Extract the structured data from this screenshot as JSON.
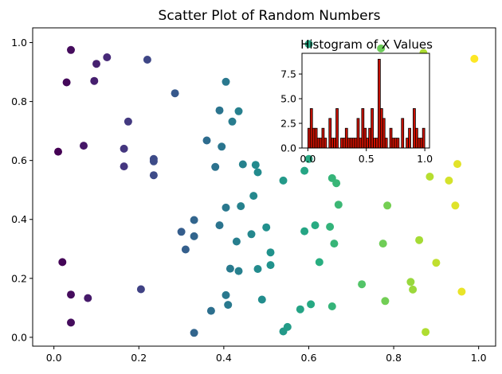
{
  "chart_data": [
    {
      "type": "scatter",
      "title": "Scatter Plot of Random Numbers",
      "xlabel": "",
      "ylabel": "",
      "xlim": [
        -0.05,
        1.04
      ],
      "ylim": [
        -0.03,
        1.05
      ],
      "xticks": [
        0.0,
        0.2,
        0.4,
        0.6,
        0.8,
        1.0
      ],
      "xtick_labels": [
        "0.0",
        "0.2",
        "0.4",
        "0.6",
        "0.8",
        "1.0"
      ],
      "yticks": [
        0.0,
        0.2,
        0.4,
        0.6,
        0.8,
        1.0
      ],
      "ytick_labels": [
        "0.0",
        "0.2",
        "0.4",
        "0.6",
        "0.8",
        "1.0"
      ],
      "colormap": "viridis",
      "color_by": "x",
      "grid": false,
      "points": [
        {
          "x": 0.01,
          "y": 0.63
        },
        {
          "x": 0.02,
          "y": 0.255
        },
        {
          "x": 0.03,
          "y": 0.865
        },
        {
          "x": 0.04,
          "y": 0.975
        },
        {
          "x": 0.04,
          "y": 0.145
        },
        {
          "x": 0.04,
          "y": 0.05
        },
        {
          "x": 0.07,
          "y": 0.65
        },
        {
          "x": 0.08,
          "y": 0.133
        },
        {
          "x": 0.095,
          "y": 0.87
        },
        {
          "x": 0.1,
          "y": 0.928
        },
        {
          "x": 0.125,
          "y": 0.95
        },
        {
          "x": 0.165,
          "y": 0.64
        },
        {
          "x": 0.165,
          "y": 0.58
        },
        {
          "x": 0.175,
          "y": 0.732
        },
        {
          "x": 0.205,
          "y": 0.163
        },
        {
          "x": 0.22,
          "y": 0.942
        },
        {
          "x": 0.235,
          "y": 0.605
        },
        {
          "x": 0.235,
          "y": 0.597
        },
        {
          "x": 0.235,
          "y": 0.55
        },
        {
          "x": 0.285,
          "y": 0.828
        },
        {
          "x": 0.3,
          "y": 0.358
        },
        {
          "x": 0.31,
          "y": 0.298
        },
        {
          "x": 0.33,
          "y": 0.398
        },
        {
          "x": 0.33,
          "y": 0.343
        },
        {
          "x": 0.33,
          "y": 0.015
        },
        {
          "x": 0.36,
          "y": 0.668
        },
        {
          "x": 0.37,
          "y": 0.09
        },
        {
          "x": 0.38,
          "y": 0.578
        },
        {
          "x": 0.39,
          "y": 0.77
        },
        {
          "x": 0.39,
          "y": 0.38
        },
        {
          "x": 0.395,
          "y": 0.647
        },
        {
          "x": 0.405,
          "y": 0.867
        },
        {
          "x": 0.405,
          "y": 0.44
        },
        {
          "x": 0.405,
          "y": 0.143
        },
        {
          "x": 0.41,
          "y": 0.11
        },
        {
          "x": 0.415,
          "y": 0.233
        },
        {
          "x": 0.42,
          "y": 0.732
        },
        {
          "x": 0.43,
          "y": 0.325
        },
        {
          "x": 0.435,
          "y": 0.767
        },
        {
          "x": 0.435,
          "y": 0.225
        },
        {
          "x": 0.44,
          "y": 0.445
        },
        {
          "x": 0.445,
          "y": 0.587
        },
        {
          "x": 0.465,
          "y": 0.35
        },
        {
          "x": 0.47,
          "y": 0.48
        },
        {
          "x": 0.475,
          "y": 0.585
        },
        {
          "x": 0.48,
          "y": 0.232
        },
        {
          "x": 0.48,
          "y": 0.56
        },
        {
          "x": 0.49,
          "y": 0.128
        },
        {
          "x": 0.5,
          "y": 0.373
        },
        {
          "x": 0.51,
          "y": 0.288
        },
        {
          "x": 0.51,
          "y": 0.245
        },
        {
          "x": 0.54,
          "y": 0.532
        },
        {
          "x": 0.54,
          "y": 0.02
        },
        {
          "x": 0.55,
          "y": 0.035
        },
        {
          "x": 0.58,
          "y": 0.095
        },
        {
          "x": 0.59,
          "y": 0.36
        },
        {
          "x": 0.59,
          "y": 0.565
        },
        {
          "x": 0.6,
          "y": 0.995
        },
        {
          "x": 0.6,
          "y": 0.605
        },
        {
          "x": 0.605,
          "y": 0.112
        },
        {
          "x": 0.615,
          "y": 0.38
        },
        {
          "x": 0.625,
          "y": 0.255
        },
        {
          "x": 0.65,
          "y": 0.375
        },
        {
          "x": 0.655,
          "y": 0.54
        },
        {
          "x": 0.655,
          "y": 0.105
        },
        {
          "x": 0.66,
          "y": 0.318
        },
        {
          "x": 0.665,
          "y": 0.523
        },
        {
          "x": 0.67,
          "y": 0.45
        },
        {
          "x": 0.725,
          "y": 0.18
        },
        {
          "x": 0.77,
          "y": 0.98
        },
        {
          "x": 0.775,
          "y": 0.318
        },
        {
          "x": 0.78,
          "y": 0.123
        },
        {
          "x": 0.785,
          "y": 0.447
        },
        {
          "x": 0.84,
          "y": 0.188
        },
        {
          "x": 0.845,
          "y": 0.162
        },
        {
          "x": 0.86,
          "y": 0.33
        },
        {
          "x": 0.87,
          "y": 0.965
        },
        {
          "x": 0.875,
          "y": 0.018
        },
        {
          "x": 0.885,
          "y": 0.545
        },
        {
          "x": 0.9,
          "y": 0.253
        },
        {
          "x": 0.93,
          "y": 0.532
        },
        {
          "x": 0.945,
          "y": 0.447
        },
        {
          "x": 0.95,
          "y": 0.588
        },
        {
          "x": 0.96,
          "y": 0.155
        },
        {
          "x": 0.99,
          "y": 0.945
        }
      ]
    },
    {
      "type": "bar",
      "subtype": "histogram",
      "title": "Histogram of X Values",
      "xlabel": "",
      "ylabel": "",
      "xlim": [
        -0.05,
        1.04
      ],
      "ylim": [
        0,
        9.6
      ],
      "xticks": [
        0.0,
        0.5,
        1.0
      ],
      "xtick_labels": [
        "0.0",
        "0.5",
        "1.0"
      ],
      "yticks": [
        0.0,
        2.5,
        5.0,
        7.5
      ],
      "ytick_labels": [
        "0.0",
        "2.5",
        "5.0",
        "7.5"
      ],
      "bar_color": "#cc1100",
      "edge_color": "#000000",
      "bin_start": 0.0,
      "bin_width": 0.02,
      "counts": [
        2,
        4,
        2,
        2,
        1,
        1,
        2,
        1,
        0,
        3,
        1,
        1,
        4,
        0,
        1,
        1,
        2,
        1,
        1,
        1,
        1,
        3,
        1,
        4,
        2,
        1,
        2,
        4,
        1,
        1,
        9,
        4,
        3,
        1,
        0,
        2,
        1,
        1,
        1,
        0,
        3,
        0,
        1,
        2,
        0,
        4,
        2,
        1,
        1,
        2
      ]
    }
  ]
}
